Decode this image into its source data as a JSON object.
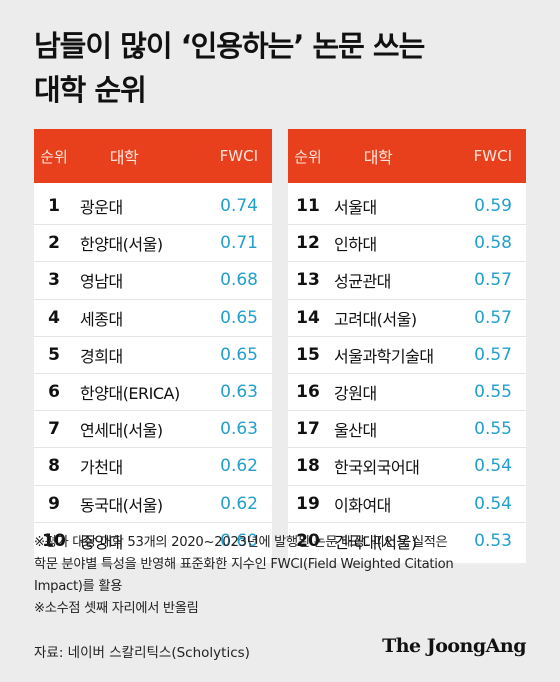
{
  "title": {
    "line1": "남들이 많이 ‘인용하는’ 논문 쓰는",
    "line2": "대학 순위"
  },
  "table": {
    "headers": {
      "rank": "순위",
      "university": "대학",
      "metric": "FWCI"
    },
    "left": [
      {
        "rank": "1",
        "name": "광운대",
        "fwci": "0.74"
      },
      {
        "rank": "2",
        "name": "한양대(서울)",
        "fwci": "0.71"
      },
      {
        "rank": "3",
        "name": "영남대",
        "fwci": "0.68"
      },
      {
        "rank": "4",
        "name": "세종대",
        "fwci": "0.65"
      },
      {
        "rank": "5",
        "name": "경희대",
        "fwci": "0.65"
      },
      {
        "rank": "6",
        "name": "한양대(ERICA)",
        "fwci": "0.63"
      },
      {
        "rank": "7",
        "name": "연세대(서울)",
        "fwci": "0.63"
      },
      {
        "rank": "8",
        "name": "가천대",
        "fwci": "0.62"
      },
      {
        "rank": "9",
        "name": "동국대(서울)",
        "fwci": "0.62"
      },
      {
        "rank": "10",
        "name": "중앙대",
        "fwci": "0.60"
      }
    ],
    "right": [
      {
        "rank": "11",
        "name": "서울대",
        "fwci": "0.59"
      },
      {
        "rank": "12",
        "name": "인하대",
        "fwci": "0.58"
      },
      {
        "rank": "13",
        "name": "성균관대",
        "fwci": "0.57"
      },
      {
        "rank": "14",
        "name": "고려대(서울)",
        "fwci": "0.57"
      },
      {
        "rank": "15",
        "name": "서울과학기술대",
        "fwci": "0.57"
      },
      {
        "rank": "16",
        "name": "강원대",
        "fwci": "0.55"
      },
      {
        "rank": "17",
        "name": "울산대",
        "fwci": "0.55"
      },
      {
        "rank": "18",
        "name": "한국외국어대",
        "fwci": "0.54"
      },
      {
        "rank": "19",
        "name": "이화여대",
        "fwci": "0.54"
      },
      {
        "rank": "20",
        "name": "건국대(서울)",
        "fwci": "0.53"
      }
    ]
  },
  "notes": {
    "line1": "※평가 대상 대학 53개의 2020~2023년에 발행된 논문 대상. 피인용 실적은",
    "line2": "학문 분야별 특성을 반영해 표준화한 지수인 FWCI(Field Weighted Citation",
    "line3": "Impact)를 활용",
    "line4": "※소수점 셋째 자리에서 반올림"
  },
  "source": "자료: 네이버 스칼리틱스(Scholytics)",
  "logo": "The JoongAng",
  "colors": {
    "header_bg": "#e8401c",
    "value": "#22a0cc",
    "background": "#ececec"
  }
}
